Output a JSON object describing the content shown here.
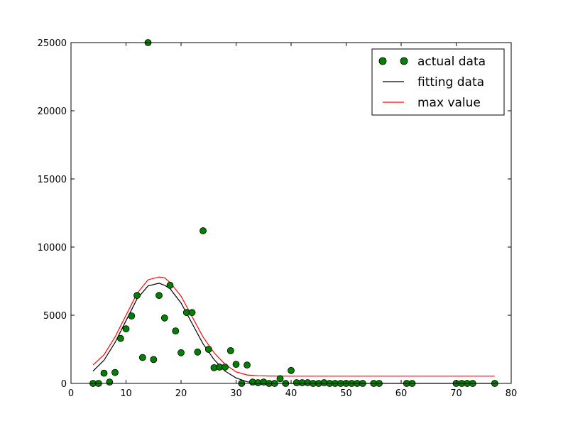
{
  "chart_data": {
    "type": "scatter",
    "xlim": [
      0,
      80
    ],
    "ylim": [
      0,
      25000
    ],
    "x_ticks": [
      "0",
      "10",
      "20",
      "30",
      "40",
      "50",
      "60",
      "70",
      "80"
    ],
    "y_ticks": [
      "0",
      "5000",
      "10000",
      "15000",
      "20000",
      "25000"
    ],
    "grid": false,
    "legend_position": "top-right",
    "legend": [
      "actual data",
      "fitting data",
      "max value"
    ],
    "series": [
      {
        "name": "actual data",
        "kind": "points",
        "color": "#008000",
        "x": [
          4,
          5,
          6,
          7,
          8,
          9,
          10,
          11,
          12,
          13,
          14,
          15,
          16,
          17,
          18,
          19,
          20,
          21,
          22,
          23,
          24,
          25,
          26,
          27,
          28,
          29,
          30,
          31,
          32,
          33,
          34,
          35,
          36,
          37,
          38,
          39,
          40,
          41,
          42,
          43,
          44,
          45,
          46,
          47,
          48,
          49,
          50,
          51,
          52,
          53,
          55,
          56,
          61,
          62,
          70,
          71,
          72,
          73,
          77
        ],
        "y": [
          0,
          0,
          750,
          100,
          800,
          3300,
          4000,
          4950,
          6450,
          1900,
          25000,
          1750,
          6450,
          4800,
          7200,
          3850,
          2250,
          5200,
          5200,
          2300,
          11200,
          2500,
          1150,
          1200,
          1200,
          2400,
          1400,
          0,
          1350,
          100,
          50,
          100,
          0,
          0,
          350,
          0,
          950,
          50,
          50,
          50,
          0,
          0,
          50,
          0,
          0,
          0,
          0,
          0,
          0,
          0,
          0,
          0,
          0,
          0,
          0,
          0,
          0,
          0,
          0
        ]
      },
      {
        "name": "fitting data",
        "kind": "line",
        "color": "#000000",
        "x": [
          4,
          6,
          8,
          10,
          12,
          14,
          16,
          17,
          18,
          20,
          22,
          24,
          26,
          28,
          30,
          32,
          34,
          36,
          40,
          50,
          60,
          70,
          77
        ],
        "y": [
          900,
          1700,
          3000,
          4600,
          6200,
          7150,
          7350,
          7200,
          6950,
          5900,
          4400,
          2900,
          1750,
          900,
          400,
          120,
          30,
          10,
          0,
          0,
          0,
          0,
          0
        ]
      },
      {
        "name": "max value",
        "kind": "line",
        "color": "#ff0000",
        "x": [
          4,
          6,
          8,
          10,
          12,
          14,
          16,
          17,
          18,
          20,
          22,
          24,
          26,
          28,
          30,
          32,
          34,
          36,
          40,
          50,
          60,
          70,
          77
        ],
        "y": [
          1350,
          2100,
          3400,
          5000,
          6600,
          7600,
          7800,
          7750,
          7400,
          6400,
          4900,
          3400,
          2250,
          1400,
          850,
          620,
          560,
          540,
          530,
          530,
          530,
          530,
          530
        ]
      }
    ]
  }
}
